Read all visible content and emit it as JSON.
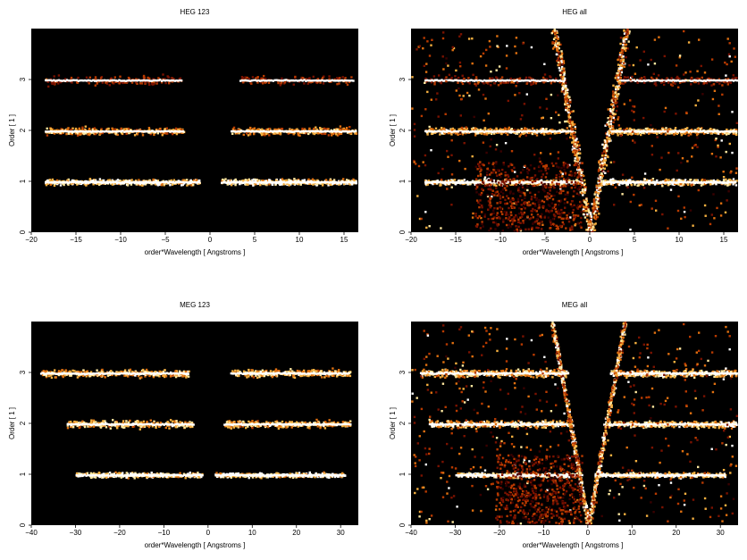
{
  "chart_data": [
    {
      "type": "heatmap",
      "title": "HEG 123",
      "xlabel": "order*Wavelength [ Angstroms ]",
      "ylabel": "Order [ 1 ]",
      "xlim": [
        -20,
        16.6
      ],
      "ylim": [
        0,
        4
      ],
      "xticks": [
        -20,
        -15,
        -10,
        -5,
        0,
        5,
        10,
        15
      ],
      "yticks": [
        0,
        1,
        2,
        3
      ],
      "bands": [
        {
          "order": 1,
          "x_ranges": [
            [
              -18.5,
              -1.2
            ],
            [
              1.2,
              16.6
            ]
          ],
          "intensity": 1.0,
          "spread": 0.06
        },
        {
          "order": 2,
          "x_ranges": [
            [
              -18.5,
              -3.0
            ],
            [
              2.3,
              16.6
            ]
          ],
          "intensity": 0.75,
          "spread": 0.08
        },
        {
          "order": 3,
          "x_ranges": [
            [
              -18.5,
              -3.3
            ],
            [
              3.3,
              16.0
            ]
          ],
          "intensity": 0.4,
          "spread": 0.1
        }
      ],
      "wedge": false
    },
    {
      "type": "heatmap",
      "title": "HEG all",
      "xlabel": "order*Wavelength [ Angstroms ]",
      "ylabel": "Order [ 1 ]",
      "xlim": [
        -20,
        16.6
      ],
      "ylim": [
        0,
        4
      ],
      "xticks": [
        -20,
        -15,
        -10,
        -5,
        0,
        5,
        10,
        15
      ],
      "yticks": [
        0,
        1,
        2,
        3
      ],
      "bands": [
        {
          "order": 1,
          "x_ranges": [
            [
              -18.5,
              -1.0
            ],
            [
              1.0,
              16.6
            ]
          ],
          "intensity": 1.0,
          "spread": 0.06
        },
        {
          "order": 2,
          "x_ranges": [
            [
              -18.5,
              -2.0
            ],
            [
              2.0,
              16.6
            ]
          ],
          "intensity": 0.85,
          "spread": 0.07
        },
        {
          "order": 3,
          "x_ranges": [
            [
              -18.5,
              -3.0
            ],
            [
              3.0,
              16.6
            ]
          ],
          "intensity": 0.35,
          "spread": 0.1
        }
      ],
      "wedge": true,
      "background": 0.18
    },
    {
      "type": "heatmap",
      "title": "MEG 123",
      "xlabel": "order*Wavelength [ Angstroms ]",
      "ylabel": "Order [ 1 ]",
      "xlim": [
        -40,
        34
      ],
      "ylim": [
        0,
        4
      ],
      "xticks": [
        -40,
        -30,
        -20,
        -10,
        0,
        10,
        20,
        30
      ],
      "yticks": [
        0,
        1,
        2,
        3
      ],
      "bands": [
        {
          "order": 1,
          "x_ranges": [
            [
              -30,
              -1.5
            ],
            [
              1.5,
              31
            ]
          ],
          "intensity": 1.0,
          "spread": 0.05
        },
        {
          "order": 2,
          "x_ranges": [
            [
              -32,
              -3.5
            ],
            [
              3.5,
              32
            ]
          ],
          "intensity": 0.85,
          "spread": 0.08
        },
        {
          "order": 3,
          "x_ranges": [
            [
              -38,
              -4.5
            ],
            [
              5,
              32
            ]
          ],
          "intensity": 0.85,
          "spread": 0.08
        }
      ],
      "wedge": false
    },
    {
      "type": "heatmap",
      "title": "MEG all",
      "xlabel": "order*Wavelength [ Angstroms ]",
      "ylabel": "Order [ 1 ]",
      "xlim": [
        -40,
        34
      ],
      "ylim": [
        0,
        4
      ],
      "xticks": [
        -40,
        -30,
        -20,
        -10,
        0,
        10,
        20,
        30
      ],
      "yticks": [
        0,
        1,
        2,
        3
      ],
      "bands": [
        {
          "order": 1,
          "x_ranges": [
            [
              -30,
              -1.5
            ],
            [
              1.5,
              31
            ]
          ],
          "intensity": 1.0,
          "spread": 0.05
        },
        {
          "order": 2,
          "x_ranges": [
            [
              -36,
              -3.5
            ],
            [
              3.5,
              34
            ]
          ],
          "intensity": 0.9,
          "spread": 0.07
        },
        {
          "order": 3,
          "x_ranges": [
            [
              -38,
              -4.5
            ],
            [
              5,
              34
            ]
          ],
          "intensity": 0.9,
          "spread": 0.08
        }
      ],
      "wedge": true,
      "background": 0.22
    }
  ],
  "colors": {
    "background": "#000000",
    "ramp": [
      "#3a0000",
      "#7a1200",
      "#b83a00",
      "#e07010",
      "#f5b040",
      "#ffe8a0",
      "#ffffff"
    ]
  }
}
